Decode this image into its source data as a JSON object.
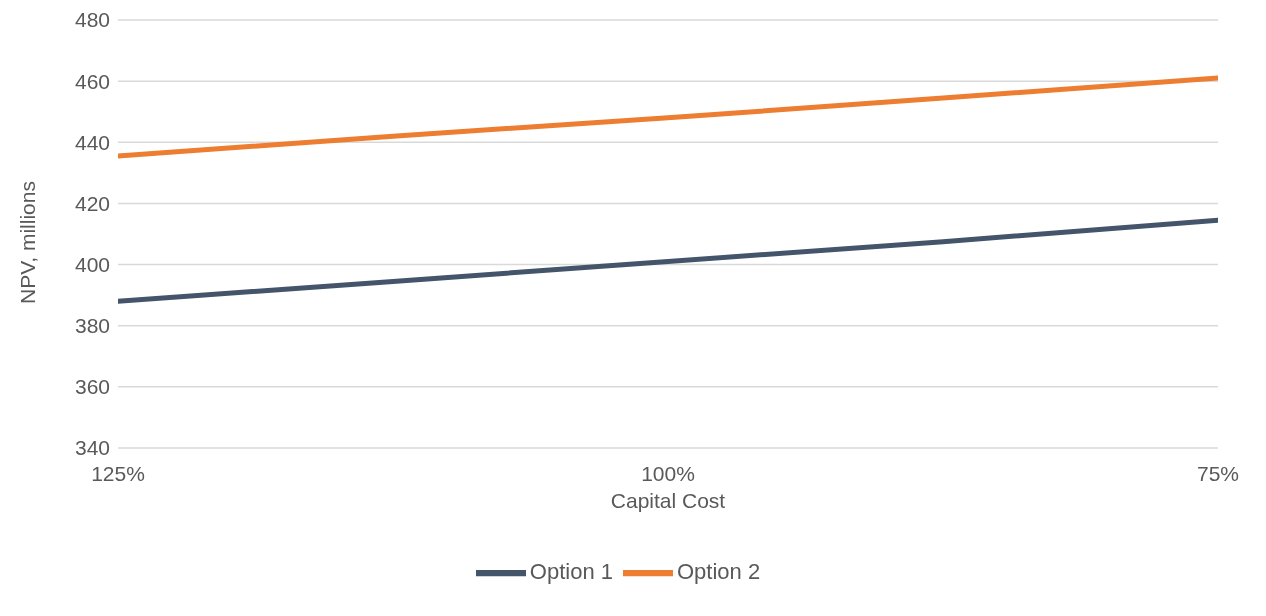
{
  "chart_data": {
    "type": "line",
    "xlabel": "Capital Cost",
    "ylabel": "NPV, millions",
    "x": [
      125,
      112.5,
      100,
      87.5,
      75
    ],
    "series": [
      {
        "name": "Option 1",
        "color": "#44546a",
        "values": [
          388,
          394.5,
          401,
          407.5,
          414.5
        ]
      },
      {
        "name": "Option 2",
        "color": "#ed7d31",
        "values": [
          435.5,
          442,
          448,
          454.5,
          461
        ]
      }
    ],
    "xlim": [
      125,
      75
    ],
    "xticks": [
      {
        "value": 125,
        "label": "125%"
      },
      {
        "value": 100,
        "label": "100%"
      },
      {
        "value": 75,
        "label": "75%"
      }
    ],
    "ylim": [
      340,
      480
    ],
    "yticks": [
      340,
      360,
      380,
      400,
      420,
      440,
      460,
      480
    ],
    "grid": "y",
    "legend": "bottom",
    "marker": "none",
    "line_style": "solid"
  }
}
